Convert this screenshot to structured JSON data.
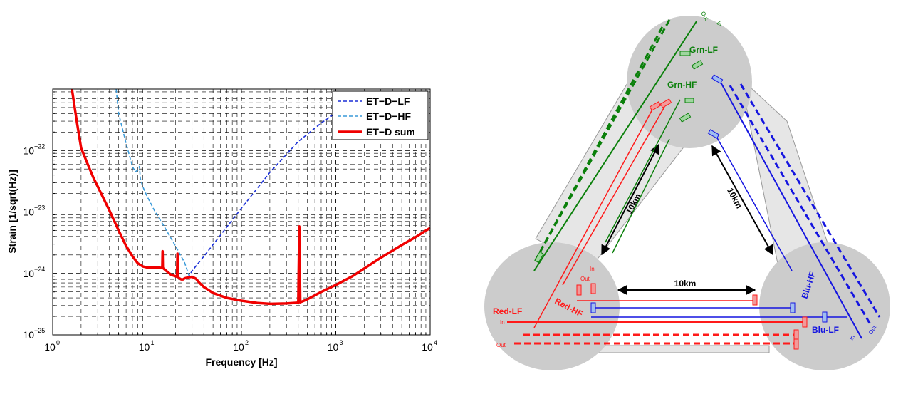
{
  "chart_data": {
    "type": "line",
    "x_scale": "log",
    "y_scale": "log",
    "xlim": [
      1,
      10000
    ],
    "ylim": [
      1e-25,
      1e-21
    ],
    "grid": true,
    "legend_position": "top-right",
    "xlabel": "Frequency [Hz]",
    "ylabel": "Strain [1/sqrt(Hz)]",
    "x_ticks": [
      {
        "value": 1,
        "base": "10",
        "exp": "0"
      },
      {
        "value": 10,
        "base": "10",
        "exp": "1"
      },
      {
        "value": 100,
        "base": "10",
        "exp": "2"
      },
      {
        "value": 1000,
        "base": "10",
        "exp": "3"
      },
      {
        "value": 10000,
        "base": "10",
        "exp": "4"
      }
    ],
    "y_ticks": [
      {
        "value": 1e-25,
        "base": "10",
        "exp": "−25"
      },
      {
        "value": 1e-24,
        "base": "10",
        "exp": "−24"
      },
      {
        "value": 1e-23,
        "base": "10",
        "exp": "−23"
      },
      {
        "value": 1e-22,
        "base": "10",
        "exp": "−22"
      }
    ],
    "series": [
      {
        "name": "ET−D−LF",
        "color": "#1a2fd6",
        "style": "dashed",
        "x": [
          27,
          30,
          40,
          60,
          100,
          200,
          400,
          700,
          1000
        ],
        "y": [
          8.5e-25,
          1.1e-24,
          1.9e-24,
          4.2e-24,
          1.15e-23,
          4.4e-23,
          1.4e-22,
          2.8e-22,
          4.1e-22
        ]
      },
      {
        "name": "ET−D−HF",
        "color": "#3a9ad9",
        "style": "dashed",
        "x": [
          4.7,
          5,
          6,
          7,
          7.5,
          8,
          8.3,
          8.5,
          9,
          10,
          12,
          15,
          20,
          25,
          28
        ],
        "y": [
          1e-21,
          4e-22,
          1.3e-22,
          5.5e-23,
          4.5e-23,
          4.8e-23,
          5.5e-23,
          3.5e-23,
          2.6e-23,
          1.8e-23,
          1.05e-23,
          6e-24,
          2.8e-24,
          1.5e-24,
          9e-25
        ]
      },
      {
        "name": "ET−D sum",
        "color": "#f00000",
        "style": "solid",
        "x": [
          1.6,
          1.8,
          2,
          2.3,
          2.7,
          3,
          3.5,
          4,
          5,
          6,
          7,
          8,
          9,
          10,
          11,
          12,
          13,
          14,
          14.5,
          14.6,
          14.7,
          15,
          16,
          18,
          20,
          20.8,
          21,
          21.2,
          22,
          23,
          24,
          25,
          27,
          30,
          33,
          36,
          40,
          50,
          70,
          100,
          150,
          200,
          300,
          400,
          410,
          420,
          430,
          440,
          500,
          700,
          1000,
          1500,
          2000,
          3000,
          5000,
          7000,
          10000
        ],
        "y": [
          1e-21,
          3e-22,
          1.1e-22,
          6.5e-23,
          3.6e-23,
          2.6e-23,
          1.6e-23,
          1.05e-23,
          5e-24,
          2.8e-24,
          1.9e-24,
          1.45e-24,
          1.3e-24,
          1.25e-24,
          1.24e-24,
          1.25e-24,
          1.25e-24,
          1.23e-24,
          1.22e-24,
          2.3e-24,
          1.22e-24,
          1.2e-24,
          1.1e-24,
          9.5e-25,
          9e-25,
          8.8e-25,
          2.1e-24,
          8.8e-25,
          8.3e-25,
          8e-25,
          8e-25,
          8.3e-25,
          8.6e-25,
          8.8e-25,
          8.2e-25,
          7e-25,
          6e-25,
          4.8e-25,
          4e-25,
          3.6e-25,
          3.3e-25,
          3.2e-25,
          3.25e-25,
          3.35e-25,
          5.8e-24,
          3.4e-25,
          3.45e-25,
          3.5e-25,
          3.8e-25,
          5e-25,
          6.5e-25,
          9e-25,
          1.2e-24,
          1.8e-24,
          2.9e-24,
          3.9e-24,
          5.5e-24
        ]
      }
    ]
  },
  "diagram": {
    "station_labels": {
      "grn_lf": "Grn-LF",
      "grn_hf": "Grn-HF",
      "red_lf": "Red-LF",
      "red_hf": "Red-HF",
      "blu_lf": "Blu-LF",
      "blu_hf": "Blu-HF"
    },
    "distance_label": "10km",
    "port_in": "In",
    "port_out": "Out",
    "colors": {
      "red": "#ff1a1a",
      "green": "#0b800b",
      "blue": "#1515e0",
      "station": "#cccccc",
      "tube": "#e6e6e6"
    }
  }
}
